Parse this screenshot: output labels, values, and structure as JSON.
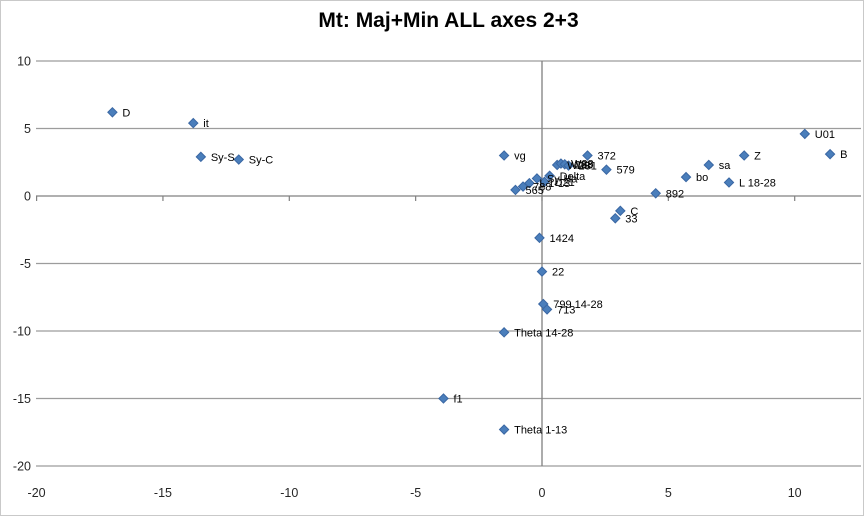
{
  "title": "Mt: Maj+Min ALL axes 2+3",
  "colors": {
    "marker_fill": "#4a7ebb",
    "marker_edge": "#3a67a3",
    "gridline": "#9c9c9c",
    "axis_line": "#808080",
    "frame_border": "#c9c9c9",
    "tick_label": "#262626",
    "point_label": "#000000",
    "background": "#ffffff"
  },
  "chart_data": {
    "type": "scatter",
    "title": "Mt: Maj+Min ALL axes 2+3",
    "xlabel": "",
    "ylabel": "",
    "xlim": [
      -20,
      12.6
    ],
    "ylim": [
      -20,
      10
    ],
    "x_ticks": [
      -20,
      -15,
      -10,
      -5,
      0,
      5,
      10
    ],
    "y_ticks": [
      10,
      5,
      0,
      -5,
      -10,
      -15,
      -20
    ],
    "grid": "horizontal-only",
    "legend_position": "none",
    "marker": "diamond",
    "points": [
      {
        "label": "D",
        "x": -17.0,
        "y": 6.2
      },
      {
        "label": "it",
        "x": -13.8,
        "y": 5.4
      },
      {
        "label": "Sy-S",
        "x": -13.5,
        "y": 2.9
      },
      {
        "label": "Sy-C",
        "x": -12.0,
        "y": 2.7
      },
      {
        "label": "vg",
        "x": -1.5,
        "y": 3.0
      },
      {
        "label": "372",
        "x": 1.8,
        "y": 3.0
      },
      {
        "label": "579",
        "x": 2.55,
        "y": 1.95
      },
      {
        "label": "U01",
        "x": 10.4,
        "y": 4.6
      },
      {
        "label": "B",
        "x": 11.4,
        "y": 3.1
      },
      {
        "label": "Z",
        "x": 8.0,
        "y": 3.0
      },
      {
        "label": "sa",
        "x": 6.6,
        "y": 2.3
      },
      {
        "label": "bo",
        "x": 5.7,
        "y": 1.4
      },
      {
        "label": "L 18-28",
        "x": 7.4,
        "y": 1.0
      },
      {
        "label": "892",
        "x": 4.5,
        "y": 0.2
      },
      {
        "label": "C",
        "x": 3.1,
        "y": -1.1
      },
      {
        "label": "33",
        "x": 2.9,
        "y": -1.65
      },
      {
        "label": "1424",
        "x": -0.1,
        "y": -3.1
      },
      {
        "label": "22",
        "x": 0.0,
        "y": -5.6
      },
      {
        "label": "799 14-28",
        "x": 0.05,
        "y": -8.0
      },
      {
        "label": "713",
        "x": 0.2,
        "y": -8.4
      },
      {
        "label": "Theta 14-28",
        "x": -1.5,
        "y": -10.1
      },
      {
        "label": "f1",
        "x": -3.9,
        "y": -15.0
      },
      {
        "label": "Theta 1-13",
        "x": -1.5,
        "y": -17.3
      },
      {
        "label": "W29",
        "x": 0.6,
        "y": 2.3
      },
      {
        "label": "W28",
        "x": 0.75,
        "y": 2.4
      },
      {
        "label": "293",
        "x": 0.9,
        "y": 2.35
      },
      {
        "label": "281",
        "x": 1.05,
        "y": 2.25
      },
      {
        "label": "Delta",
        "x": 0.3,
        "y": 1.5
      },
      {
        "label": "Sy-Ha",
        "x": -0.2,
        "y": 1.3
      },
      {
        "label": "D21",
        "x": 0.1,
        "y": 1.05
      },
      {
        "label": "L 1-13",
        "x": -0.5,
        "y": 0.95
      },
      {
        "label": "788",
        "x": -0.75,
        "y": 0.7
      },
      {
        "label": "565",
        "x": -1.05,
        "y": 0.45
      }
    ]
  }
}
